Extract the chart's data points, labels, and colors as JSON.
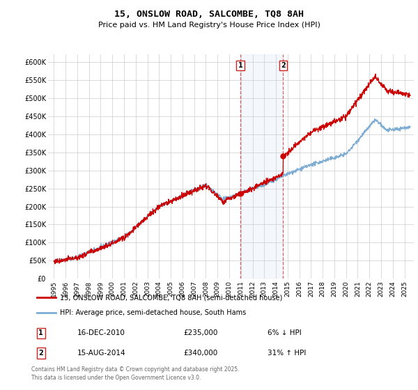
{
  "title": "15, ONSLOW ROAD, SALCOMBE, TQ8 8AH",
  "subtitle": "Price paid vs. HM Land Registry's House Price Index (HPI)",
  "ylim": [
    0,
    620000
  ],
  "yticks": [
    0,
    50000,
    100000,
    150000,
    200000,
    250000,
    300000,
    350000,
    400000,
    450000,
    500000,
    550000,
    600000
  ],
  "ytick_labels": [
    "£0",
    "£50K",
    "£100K",
    "£150K",
    "£200K",
    "£250K",
    "£300K",
    "£350K",
    "£400K",
    "£450K",
    "£500K",
    "£550K",
    "£600K"
  ],
  "xlim_start": 1994.5,
  "xlim_end": 2025.8,
  "sale1_x": 2010.96,
  "sale1_y": 235000,
  "sale1_label": "1",
  "sale1_date": "16-DEC-2010",
  "sale1_price": "£235,000",
  "sale1_hpi": "6% ↓ HPI",
  "sale2_x": 2014.62,
  "sale2_y": 340000,
  "sale2_label": "2",
  "sale2_date": "15-AUG-2014",
  "sale2_price": "£340,000",
  "sale2_hpi": "31% ↑ HPI",
  "red_line_color": "#cc0000",
  "blue_line_color": "#7dadd4",
  "grid_color": "#cccccc",
  "background_color": "#ffffff",
  "legend_label_red": "15, ONSLOW ROAD, SALCOMBE, TQ8 8AH (semi-detached house)",
  "legend_label_blue": "HPI: Average price, semi-detached house, South Hams",
  "footer_text": "Contains HM Land Registry data © Crown copyright and database right 2025.\nThis data is licensed under the Open Government Licence v3.0.",
  "shaded_x1": 2010.96,
  "shaded_x2": 2014.62,
  "dashed_color": "#dd4444",
  "fig_width": 6.0,
  "fig_height": 5.6,
  "dpi": 100
}
